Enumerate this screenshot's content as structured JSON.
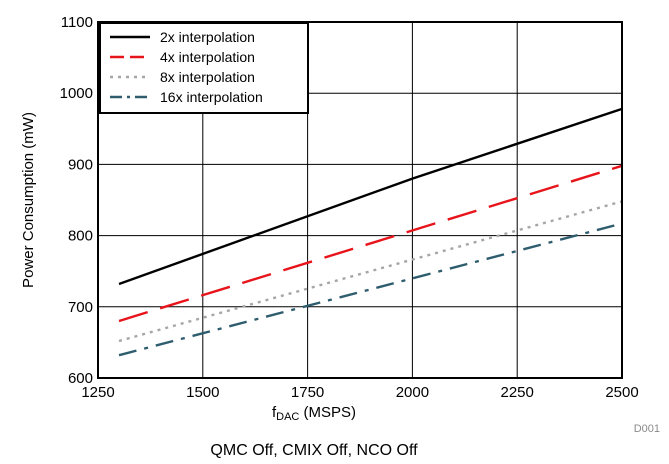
{
  "chart_data": {
    "type": "line",
    "title": "",
    "xlabel_main": "f",
    "xlabel_sub": "DAC",
    "xlabel_rest": " (MSPS)",
    "ylabel": "Power Consumption (mW)",
    "xlim": [
      1250,
      2500
    ],
    "ylim": [
      600,
      1100
    ],
    "xticks": [
      1250,
      1500,
      1750,
      2000,
      2250,
      2500
    ],
    "yticks": [
      600,
      700,
      800,
      900,
      1000,
      1100
    ],
    "grid": true,
    "legend_position": "top-left",
    "series": [
      {
        "name": "2x interpolation",
        "color": "#000000",
        "dash": "solid",
        "x": [
          1300,
          2000,
          2500
        ],
        "y": [
          732,
          880,
          978
        ]
      },
      {
        "name": "4x interpolation",
        "color": "#e8141b",
        "dash": "long-dash",
        "x": [
          1300,
          2500
        ],
        "y": [
          680,
          898
        ]
      },
      {
        "name": "8x interpolation",
        "color": "#a6a6a6",
        "dash": "dot",
        "x": [
          1300,
          2500
        ],
        "y": [
          652,
          848
        ]
      },
      {
        "name": "16x interpolation",
        "color": "#2e5d6e",
        "dash": "dash-dot",
        "x": [
          1300,
          2500
        ],
        "y": [
          632,
          817
        ]
      }
    ],
    "caption": "QMC Off, CMIX Off, NCO Off",
    "figure_id": "D001"
  }
}
